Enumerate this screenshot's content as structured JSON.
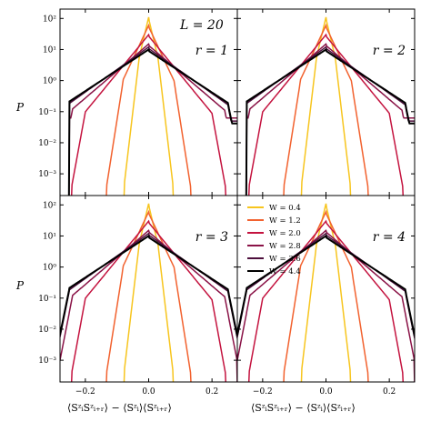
{
  "chart_data": {
    "type": "line",
    "title": "",
    "xlabel": "⟨SᶻᵢSᶻᵢ₊ᵣ⟩ − ⟨Sᶻᵢ⟩⟨Sᶻᵢ₊ᵣ⟩",
    "ylabel": "P",
    "yscale": "log",
    "xlim": [
      -0.28,
      0.28
    ],
    "ylim": [
      0.0002,
      200
    ],
    "x_ticks": [
      -0.2,
      0.0,
      0.2
    ],
    "x_tick_labels": [
      "−0.2",
      "0.0",
      "0.2"
    ],
    "y_ticks": [
      0.001,
      0.01,
      0.1,
      1,
      10,
      100
    ],
    "y_tick_labels": [
      "10⁻³",
      "10⁻²",
      "10⁻¹",
      "10⁰",
      "10¹",
      "10²"
    ],
    "grid": false,
    "legend": {
      "placement": "top-left of panel r = 4",
      "title": ""
    },
    "annotation": "L = 20",
    "series": [
      {
        "name": "W = 0.4",
        "color": "#f7c51e",
        "peak": 110,
        "width": 0.01,
        "edge": 0.03,
        "floor": 0.0004
      },
      {
        "name": "W = 1.2",
        "color": "#f2622f",
        "peak": 60,
        "width": 0.02,
        "edge": 0.08,
        "floor": 0.0004
      },
      {
        "name": "W = 2.0",
        "color": "#c4133f",
        "peak": 30,
        "width": 0.035,
        "edge": 0.2,
        "floor": 0.0004
      },
      {
        "name": "W = 2.8",
        "color": "#8a1347",
        "peak": 15,
        "width": 0.05,
        "edge": 0.24,
        "floor": 0.001
      },
      {
        "name": "W = 3.6",
        "color": "#4d0f3c",
        "peak": 12,
        "width": 0.06,
        "edge": 0.25,
        "floor": 0.002
      },
      {
        "name": "W = 4.4",
        "color": "#000000",
        "peak": 10,
        "width": 0.065,
        "edge": 0.25,
        "floor": 0.003
      }
    ],
    "panels": [
      {
        "label": "r = 1",
        "position": "top-left",
        "left_wall": -0.25
      },
      {
        "label": "r = 2",
        "position": "top-right",
        "left_wall": -0.25
      },
      {
        "label": "r = 3",
        "position": "bottom-left",
        "left_wall": null
      },
      {
        "label": "r = 4",
        "position": "bottom-right",
        "left_wall": null
      }
    ]
  }
}
